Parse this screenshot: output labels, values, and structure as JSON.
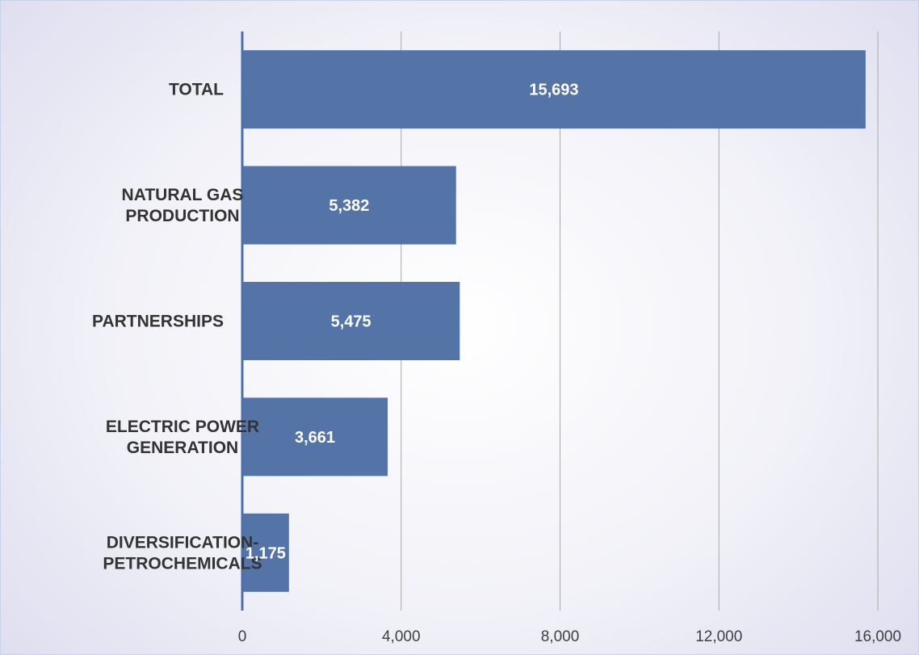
{
  "chart_data": {
    "type": "bar",
    "orientation": "horizontal",
    "categories": [
      [
        "TOTAL"
      ],
      [
        "NATURAL GAS",
        "PRODUCTION"
      ],
      [
        "PARTNERSHIPS"
      ],
      [
        "ELECTRIC POWER",
        "GENERATION"
      ],
      [
        "DIVERSIFICATION-",
        "PETROCHEMICALS"
      ]
    ],
    "values": [
      15693,
      5382,
      5475,
      3661,
      1175
    ],
    "data_labels": [
      "15,693",
      "5,382",
      "5,475",
      "3,661",
      "1,175"
    ],
    "xlim": [
      0,
      16000
    ],
    "xticks": [
      0,
      4000,
      8000,
      12000,
      16000
    ],
    "xtick_labels": [
      "0",
      "4,000",
      "8,000",
      "12,000",
      "16,000"
    ],
    "title": "",
    "xlabel": "",
    "ylabel": "",
    "grid": "vertical",
    "legend": "none",
    "colors": {
      "bar": "#5474a8",
      "axis": "#4a6fb0",
      "grid": "#a9a9a9",
      "data_label": "#ffffff",
      "category_label": "#333333",
      "tick_label": "#404040"
    }
  }
}
